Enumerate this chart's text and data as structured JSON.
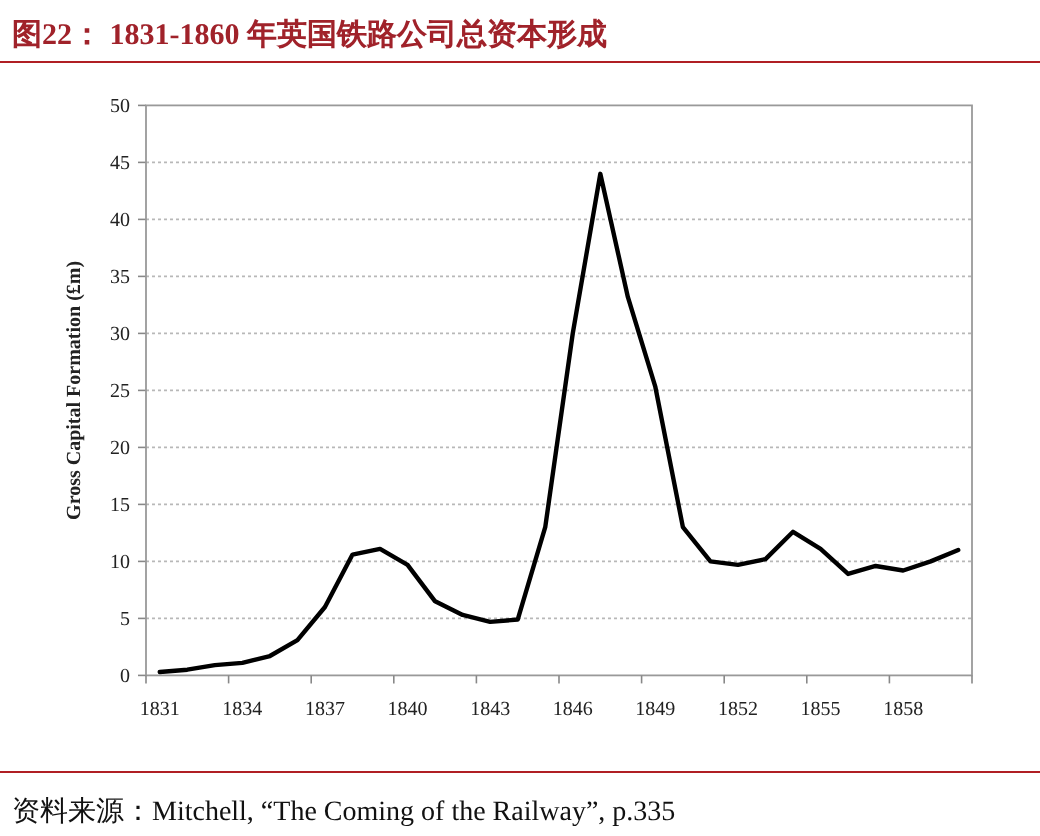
{
  "chart_data": {
    "type": "line",
    "title": "图22：  1831-1860 年英国铁路公司总资本形成",
    "ylabel": "Gross Capital Formation (£m)",
    "annotations": [
      "资料来源：Mitchell, “The Coming of the Railway”, p.335"
    ],
    "categories": [
      "1831",
      null,
      null,
      "1834",
      null,
      null,
      "1837",
      null,
      null,
      "1840",
      null,
      null,
      "1843",
      null,
      null,
      "1846",
      null,
      null,
      "1849",
      null,
      null,
      "1852",
      null,
      null,
      "1855",
      null,
      null,
      "1858",
      null,
      null
    ],
    "series": [
      {
        "color": "#000000",
        "values": [
          0.3,
          0.5,
          0.9,
          1.1,
          1.7,
          3.1,
          6.0,
          10.6,
          11.1,
          9.7,
          6.5,
          5.3,
          4.7,
          4.9,
          13.0,
          30.0,
          44.0,
          33.2,
          25.3,
          13.0,
          10.0,
          9.7,
          10.2,
          12.6,
          11.1,
          8.9,
          9.6,
          9.2,
          10.0,
          11.0
        ]
      }
    ],
    "ylim": [
      0,
      50
    ],
    "yticks": [
      0,
      5,
      10,
      15,
      20,
      25,
      30,
      35,
      40,
      45,
      50
    ],
    "grid": "y",
    "marker": "none",
    "line_style": "solid"
  }
}
